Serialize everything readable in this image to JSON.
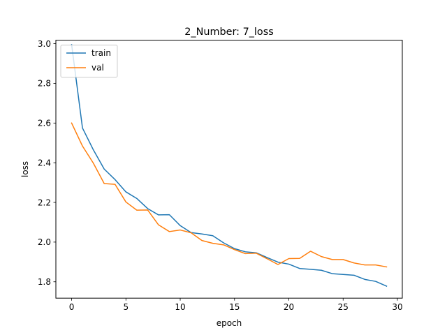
{
  "chart_data": {
    "type": "line",
    "title": "2_Number: 7_loss",
    "xlabel": "epoch",
    "ylabel": "loss",
    "xlim": [
      -1.45,
      30.45
    ],
    "ylim": [
      1.7175,
      3.0175
    ],
    "xticks": [
      0,
      5,
      10,
      15,
      20,
      25,
      30
    ],
    "yticks": [
      1.8,
      2.0,
      2.2,
      2.4,
      2.6,
      2.8,
      3.0
    ],
    "xtick_labels": [
      "0",
      "5",
      "10",
      "15",
      "20",
      "25",
      "30"
    ],
    "ytick_labels": [
      "1.8",
      "2.0",
      "2.2",
      "2.4",
      "2.6",
      "2.8",
      "3.0"
    ],
    "grid": false,
    "legend_position": "top-left",
    "x": [
      0,
      1,
      2,
      3,
      4,
      5,
      6,
      7,
      8,
      9,
      10,
      11,
      12,
      13,
      14,
      15,
      16,
      17,
      18,
      19,
      20,
      21,
      22,
      23,
      24,
      25,
      26,
      27,
      28,
      29
    ],
    "series": [
      {
        "name": "train",
        "color": "#1f77b4",
        "values": [
          2.995,
          2.575,
          2.465,
          2.368,
          2.315,
          2.253,
          2.22,
          2.169,
          2.137,
          2.138,
          2.083,
          2.048,
          2.041,
          2.032,
          1.996,
          1.967,
          1.951,
          1.946,
          1.922,
          1.899,
          1.889,
          1.867,
          1.863,
          1.858,
          1.841,
          1.837,
          1.833,
          1.812,
          1.802,
          1.778
        ]
      },
      {
        "name": "val",
        "color": "#ff7f0e",
        "values": [
          2.6,
          2.484,
          2.398,
          2.295,
          2.291,
          2.202,
          2.161,
          2.162,
          2.087,
          2.053,
          2.061,
          2.047,
          2.008,
          1.994,
          1.986,
          1.962,
          1.942,
          1.944,
          1.916,
          1.887,
          1.917,
          1.918,
          1.954,
          1.927,
          1.912,
          1.912,
          1.895,
          1.885,
          1.885,
          1.875
        ]
      }
    ]
  }
}
